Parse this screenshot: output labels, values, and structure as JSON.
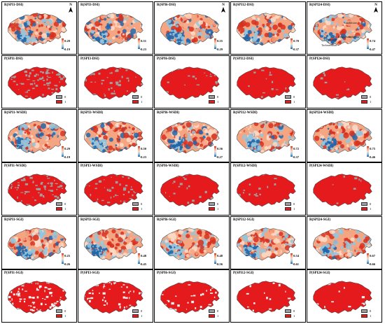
{
  "panels": [
    {
      "title": "R(SPI1-DSI)",
      "type": "r",
      "max": "0.29",
      "min": "-0.19",
      "north": true
    },
    {
      "title": "R(SPI3-DSI)",
      "type": "r",
      "max": "0.51",
      "min": "-0.23"
    },
    {
      "title": "R(SPI6-DSI)",
      "type": "r",
      "max": "0.55",
      "min": "-0.29",
      "north": true
    },
    {
      "title": "R(SPI12-DSI)",
      "type": "r",
      "max": "0.70",
      "min": "-0.37"
    },
    {
      "title": "R(SPI24-DSI)",
      "type": "r",
      "max": "0.74",
      "min": "-0.47",
      "north": true,
      "regions": [
        "Kazakhstan",
        "Kyrgyzstan",
        "Tajikistan",
        "Uzbekistan",
        "Turkmenistan"
      ]
    },
    {
      "title": "P(SPI1-DSI)",
      "type": "p",
      "leg0": "0",
      "leg1": "1"
    },
    {
      "title": "P(SPI3-DSI)",
      "type": "p",
      "leg0": "0",
      "leg1": "1"
    },
    {
      "title": "P(SPI6-DSI)",
      "type": "p",
      "leg0": "0",
      "leg1": "1"
    },
    {
      "title": "P(SPI12-DSI)",
      "type": "p",
      "leg0": "0",
      "leg1": "1"
    },
    {
      "title": "P(SPI24-DSI)",
      "type": "p",
      "leg0": "0",
      "leg1": "1"
    },
    {
      "title": "R(SPI1-WSDI)",
      "type": "r",
      "max": "0.29",
      "min": "-0.19"
    },
    {
      "title": "R(SPI3-WSDI)",
      "type": "r",
      "max": "0.50",
      "min": "-0.23"
    },
    {
      "title": "R(SPI6-WSDI)",
      "type": "r",
      "max": "0.56",
      "min": "-0.27"
    },
    {
      "title": "R(SPI12-WSDI)",
      "type": "r",
      "max": "0.72",
      "min": "-0.37"
    },
    {
      "title": "R(SPI24-WSDI)",
      "type": "r",
      "max": "0.75",
      "min": "-0.46"
    },
    {
      "title": "P(SPI1-WSDI)",
      "type": "p",
      "leg0": "0",
      "leg1": "1"
    },
    {
      "title": "P(SPI3-WSDI)",
      "type": "p",
      "leg0": "0",
      "leg1": "1"
    },
    {
      "title": "P(SPI6-WSDI)",
      "type": "p",
      "leg0": "0",
      "leg1": "1"
    },
    {
      "title": "P(SPI12-WSDI)",
      "type": "p",
      "leg0": "0",
      "leg1": "1"
    },
    {
      "title": "P(SPI24-WSDI)",
      "type": "p",
      "leg0": "0",
      "leg1": "1"
    },
    {
      "title": "R(SPI1-SGI)",
      "type": "r",
      "max": "0.25",
      "min": "-0.26"
    },
    {
      "title": "R(SPI3-SGI)",
      "type": "r",
      "max": "0.48",
      "min": "-0.45"
    },
    {
      "title": "R(SPI6-SGI)",
      "type": "r",
      "max": "0.48",
      "min": "-0.56"
    },
    {
      "title": "R(SPI12-SGI)",
      "type": "r",
      "max": "0.54",
      "min": "-0.61"
    },
    {
      "title": "R(SPI24-SGI)",
      "type": "r",
      "max": "0.67",
      "min": "-0.66"
    },
    {
      "title": "P(SPI1-SGI)",
      "type": "p",
      "leg0": "0",
      "leg1": "1"
    },
    {
      "title": "P(SPI3-SGI)",
      "type": "p",
      "leg0": "0",
      "leg1": "1"
    },
    {
      "title": "P(SPI6-SGI)",
      "type": "p",
      "leg0": "0",
      "leg1": "1"
    },
    {
      "title": "P(SPI12-SGI)",
      "type": "p",
      "leg0": "0",
      "leg1": "1"
    },
    {
      "title": "P(SPI24-SGI)",
      "type": "p",
      "leg0": "0",
      "leg1": "1"
    }
  ],
  "north_label": "N",
  "colors": {
    "positive_strong": "#d7301f",
    "positive_mid": "#f4a582",
    "neutral": "#fddbc7",
    "negative_mid": "#92c5de",
    "negative_strong": "#2166ac",
    "significant": "#e41a1c",
    "not_significant": "#a0a0a0",
    "border": "#000000"
  }
}
